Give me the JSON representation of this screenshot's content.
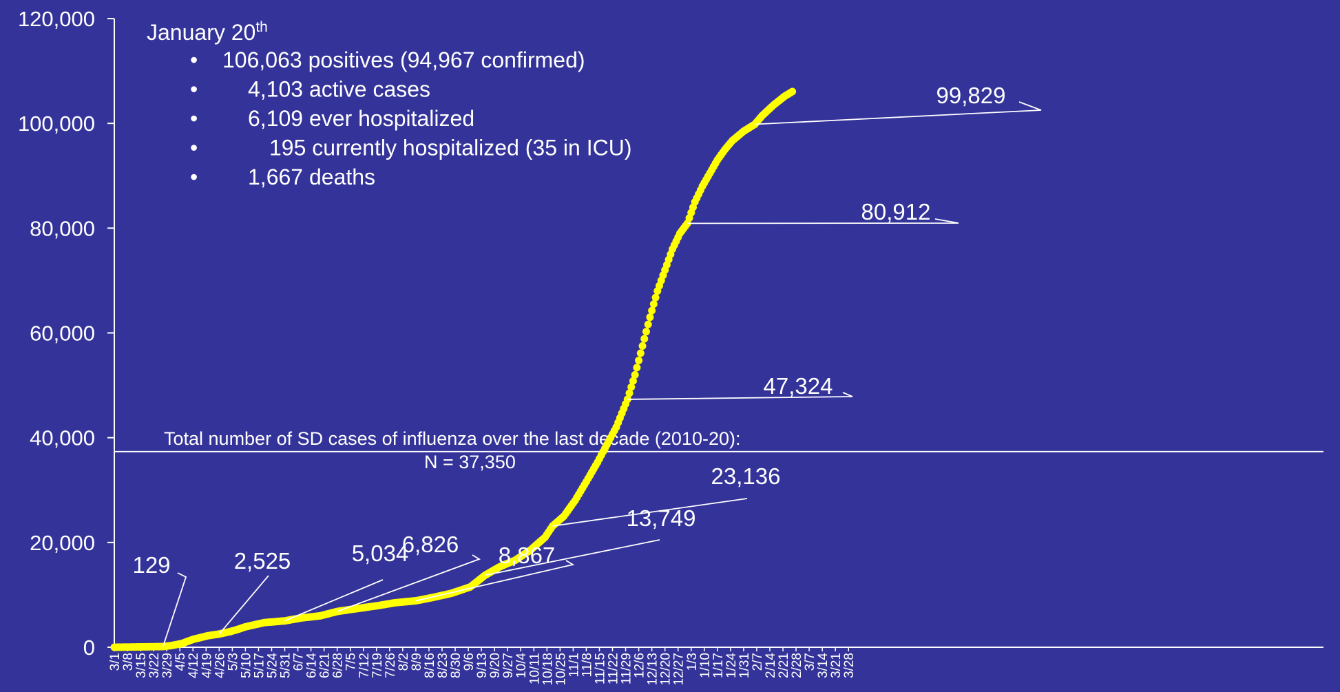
{
  "colors": {
    "background": "#343399",
    "series": "#ffff00",
    "axis": "#ffffff",
    "text": "#ffffff"
  },
  "chart_data": {
    "type": "scatter",
    "title": "",
    "xlabel": "",
    "ylabel": "",
    "ylim": [
      0,
      120000
    ],
    "y_ticks": [
      "0",
      "20,000",
      "40,000",
      "60,000",
      "80,000",
      "100,000",
      "120,000"
    ],
    "x_tick_labels": [
      "3/1",
      "3/8",
      "3/15",
      "3/22",
      "3/29",
      "4/5",
      "4/12",
      "4/19",
      "4/26",
      "5/3",
      "5/10",
      "5/17",
      "5/24",
      "5/31",
      "6/7",
      "6/14",
      "6/21",
      "6/28",
      "7/5",
      "7/12",
      "7/19",
      "7/26",
      "8/2",
      "8/9",
      "8/16",
      "8/23",
      "8/30",
      "9/6",
      "9/13",
      "9/20",
      "9/27",
      "10/4",
      "10/11",
      "10/18",
      "10/25",
      "11/1",
      "11/8",
      "11/15",
      "11/22",
      "11/29",
      "12/6",
      "12/13",
      "12/20",
      "12/27",
      "1/3",
      "1/10",
      "1/17",
      "1/24",
      "1/31",
      "2/7",
      "2/14",
      "2/21",
      "2/28",
      "3/7",
      "3/14",
      "3/21",
      "3/28"
    ],
    "grid": false,
    "legend": "none",
    "series": [
      {
        "values": [
          [
            0,
            0
          ],
          [
            26,
            129
          ],
          [
            30,
            300
          ],
          [
            36,
            700
          ],
          [
            42,
            1500
          ],
          [
            50,
            2200
          ],
          [
            56,
            2525
          ],
          [
            62,
            3000
          ],
          [
            65,
            3300
          ],
          [
            70,
            3900
          ],
          [
            75,
            4300
          ],
          [
            80,
            4700
          ],
          [
            91,
            5034
          ],
          [
            100,
            5600
          ],
          [
            110,
            6000
          ],
          [
            119,
            6826
          ],
          [
            130,
            7400
          ],
          [
            140,
            7900
          ],
          [
            150,
            8500
          ],
          [
            161,
            8867
          ],
          [
            170,
            9500
          ],
          [
            180,
            10300
          ],
          [
            190,
            11500
          ],
          [
            198,
            13749
          ],
          [
            206,
            15400
          ],
          [
            214,
            16600
          ],
          [
            222,
            18500
          ],
          [
            230,
            21000
          ],
          [
            234,
            23136
          ],
          [
            240,
            25000
          ],
          [
            246,
            28000
          ],
          [
            252,
            31600
          ],
          [
            258,
            35300
          ],
          [
            262,
            38000
          ],
          [
            268,
            42000
          ],
          [
            274,
            47324
          ],
          [
            278,
            52000
          ],
          [
            282,
            57500
          ],
          [
            286,
            63000
          ],
          [
            290,
            68000
          ],
          [
            294,
            72000
          ],
          [
            298,
            76000
          ],
          [
            302,
            79000
          ],
          [
            306,
            80912
          ],
          [
            310,
            85000
          ],
          [
            314,
            88000
          ],
          [
            318,
            90500
          ],
          [
            322,
            93000
          ],
          [
            326,
            95000
          ],
          [
            330,
            96700
          ],
          [
            336,
            98500
          ],
          [
            342,
            99829
          ],
          [
            346,
            101500
          ],
          [
            352,
            103500
          ],
          [
            358,
            105200
          ],
          [
            362,
            106063
          ]
        ]
      }
    ],
    "reference_line": {
      "value": 37350,
      "label": "Total number of SD cases of influenza over the last decade (2010-20):",
      "sublabel": "N = 37,350"
    },
    "annotations": [
      {
        "label": "129",
        "day": 26,
        "value": 129
      },
      {
        "label": "2,525",
        "day": 56,
        "value": 2525
      },
      {
        "label": "5,034",
        "day": 91,
        "value": 5034
      },
      {
        "label": "6,826",
        "day": 119,
        "value": 6826
      },
      {
        "label": "8,867",
        "day": 161,
        "value": 8867
      },
      {
        "label": "13,749",
        "day": 198,
        "value": 13749
      },
      {
        "label": "23,136",
        "day": 234,
        "value": 23136
      },
      {
        "label": "47,324",
        "day": 274,
        "value": 47324
      },
      {
        "label": "80,912",
        "day": 306,
        "value": 80912
      },
      {
        "label": "99,829",
        "day": 342,
        "value": 99829
      }
    ]
  },
  "info_box": {
    "date": "January 20",
    "date_suffix": "th",
    "lines": [
      "106,063 positives (94,967 confirmed)",
      "4,103 active cases",
      "6,109 ever hospitalized",
      "195 currently hospitalized (35 in ICU)",
      "1,667 deaths"
    ]
  }
}
